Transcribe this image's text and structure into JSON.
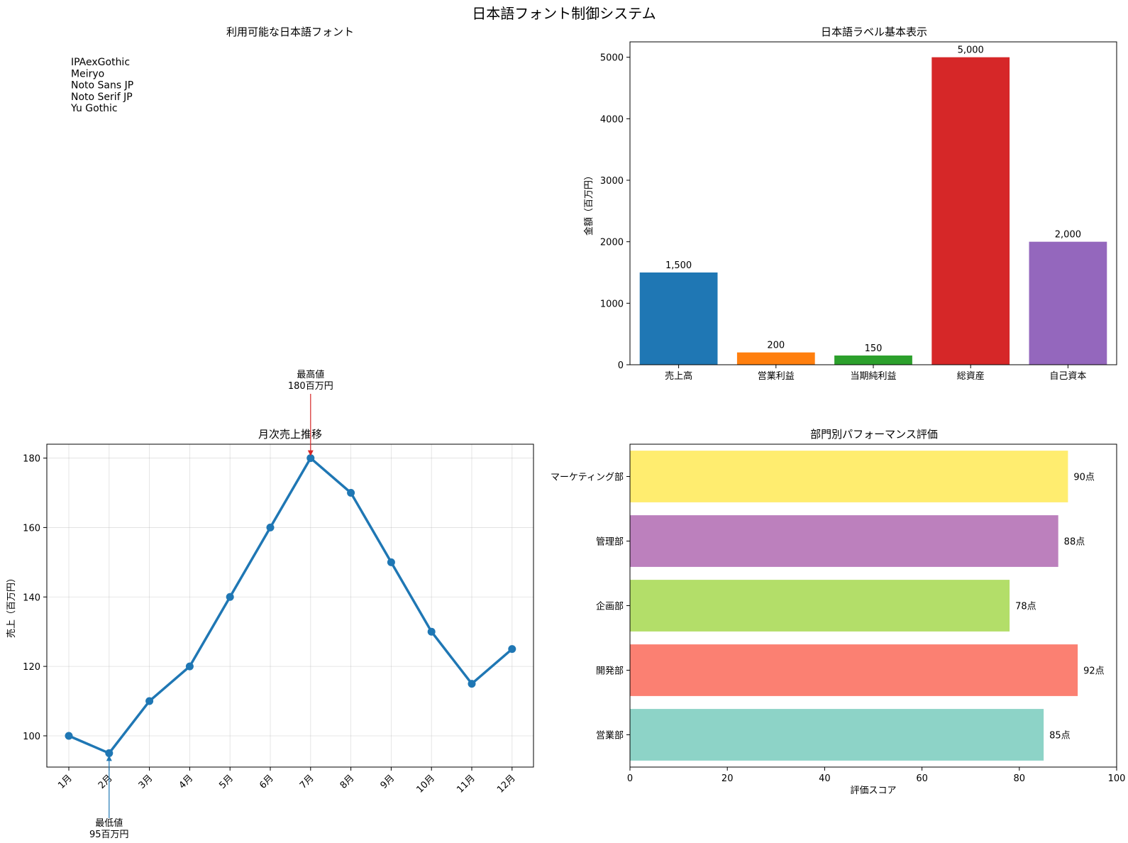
{
  "suptitle": "日本語フォント制御システム",
  "chart_data": [
    {
      "type": "table",
      "title": "利用可能な日本語フォント",
      "fonts": [
        "IPAexGothic",
        "Meiryo",
        "Noto Sans JP",
        "Noto Serif JP",
        "Yu Gothic"
      ]
    },
    {
      "type": "bar",
      "title": "日本語ラベル基本表示",
      "ylabel": "金額（百万円）",
      "categories": [
        "売上高",
        "営業利益",
        "当期純利益",
        "総資産",
        "自己資本"
      ],
      "values": [
        1500,
        200,
        150,
        5000,
        2000
      ],
      "value_labels": [
        "1,500",
        "200",
        "150",
        "5,000",
        "2,000"
      ],
      "colors": [
        "#1f77b4",
        "#ff7f0e",
        "#2ca02c",
        "#d62728",
        "#9467bd"
      ],
      "ylim": [
        0,
        5250
      ],
      "yticks": [
        0,
        1000,
        2000,
        3000,
        4000,
        5000
      ]
    },
    {
      "type": "line",
      "title": "月次売上推移",
      "ylabel": "売上（百万円）",
      "categories": [
        "1月",
        "2月",
        "3月",
        "4月",
        "5月",
        "6月",
        "7月",
        "8月",
        "9月",
        "10月",
        "11月",
        "12月"
      ],
      "values": [
        100,
        95,
        110,
        120,
        140,
        160,
        180,
        170,
        150,
        130,
        115,
        125
      ],
      "color": "#1f77b4",
      "ylim": [
        91,
        184
      ],
      "yticks": [
        100,
        120,
        140,
        160,
        180
      ],
      "grid": true,
      "annotations": [
        {
          "text_line1": "最高値",
          "text_line2": "180百万円",
          "category": "7月",
          "value": 180,
          "color": "#d62728"
        },
        {
          "text_line1": "最低値",
          "text_line2": "95百万円",
          "category": "2月",
          "value": 95,
          "color": "#1f77b4"
        }
      ]
    },
    {
      "type": "bar",
      "orientation": "horizontal",
      "title": "部門別パフォーマンス評価",
      "xlabel": "評価スコア",
      "categories": [
        "営業部",
        "開発部",
        "企画部",
        "管理部",
        "マーケティング部"
      ],
      "values": [
        85,
        92,
        78,
        88,
        90
      ],
      "value_labels": [
        "85点",
        "92点",
        "78点",
        "88点",
        "90点"
      ],
      "colors": [
        "#8dd3c7",
        "#fb8072",
        "#b3de69",
        "#bc80bd",
        "#ffed6f"
      ],
      "xlim": [
        0,
        100
      ],
      "xticks": [
        0,
        20,
        40,
        60,
        80,
        100
      ]
    }
  ]
}
